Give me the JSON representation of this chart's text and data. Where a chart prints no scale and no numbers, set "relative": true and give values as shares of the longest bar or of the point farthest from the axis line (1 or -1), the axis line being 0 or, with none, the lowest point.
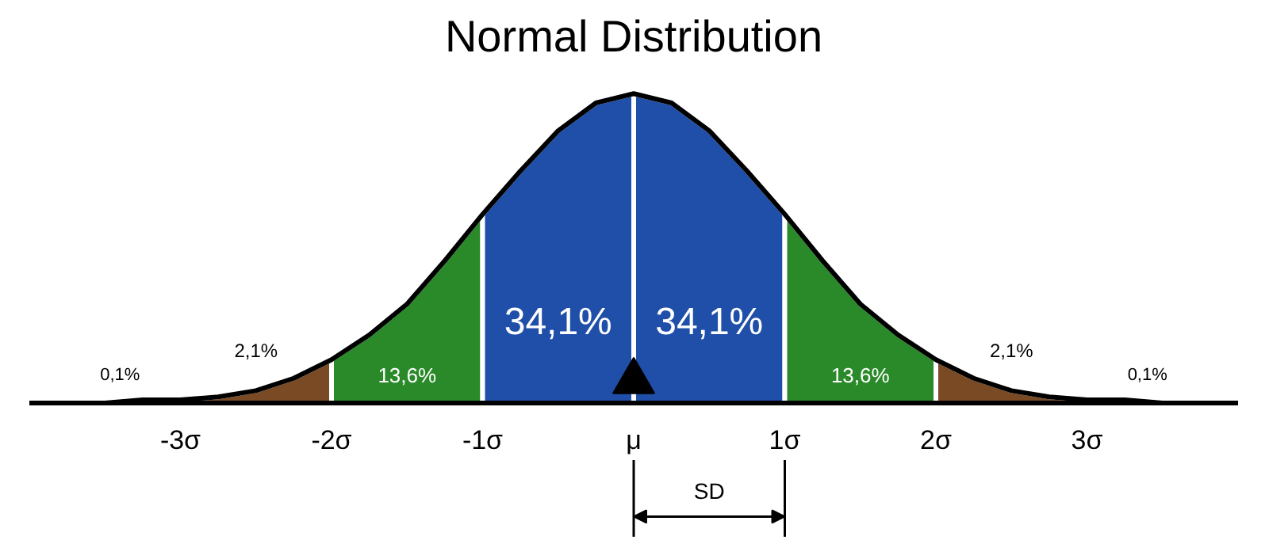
{
  "chart_data": {
    "type": "area",
    "title": "Normal Distribution",
    "relative": true,
    "grid": false,
    "tick_labels": "x",
    "xlim": [
      -4,
      4
    ],
    "xticks": [
      {
        "value": -3,
        "label": "-3σ"
      },
      {
        "value": -2,
        "label": "-2σ"
      },
      {
        "value": -1,
        "label": "-1σ"
      },
      {
        "value": 0,
        "label": "μ"
      },
      {
        "value": 1,
        "label": "1σ"
      },
      {
        "value": 2,
        "label": "2σ"
      },
      {
        "value": 3,
        "label": "3σ"
      }
    ],
    "series": [
      {
        "color": "#7a4a24",
        "x": [
          -3,
          -2.75,
          -2.5,
          -2.25,
          -2
        ],
        "values": [
          0.01,
          0.02,
          0.04,
          0.08,
          0.14
        ]
      },
      {
        "color": "#2a8a2a",
        "x": [
          -2,
          -1.75,
          -1.5,
          -1.25,
          -1
        ],
        "values": [
          0.14,
          0.22,
          0.32,
          0.46,
          0.61
        ]
      },
      {
        "color": "#1f4fa8",
        "x": [
          -1,
          -0.75,
          -0.5,
          -0.25,
          0
        ],
        "values": [
          0.61,
          0.75,
          0.88,
          0.97,
          1
        ]
      },
      {
        "color": "#1f4fa8",
        "x": [
          0,
          0.25,
          0.5,
          0.75,
          1
        ],
        "values": [
          1,
          0.97,
          0.88,
          0.75,
          0.61
        ]
      },
      {
        "color": "#2a8a2a",
        "x": [
          1,
          1.25,
          1.5,
          1.75,
          2
        ],
        "values": [
          0.61,
          0.46,
          0.32,
          0.22,
          0.14
        ]
      },
      {
        "color": "#7a4a24",
        "x": [
          2,
          2.25,
          2.5,
          2.75,
          3
        ],
        "values": [
          0.14,
          0.08,
          0.04,
          0.02,
          0.01
        ]
      },
      {
        "type": "scatter",
        "color": "#000000",
        "marker": "triangle",
        "x": [
          0
        ],
        "values": [
          0.07
        ]
      },
      {
        "type": "line",
        "color": "#000000",
        "x": [
          -4,
          -3.75,
          -3.5,
          -3.25,
          -3,
          -2.75,
          -2.5,
          -2.25,
          -2,
          -1.75,
          -1.5,
          -1.25,
          -1,
          -0.75,
          -0.5,
          -0.25,
          0,
          0.25,
          0.5,
          0.75,
          1,
          1.25,
          1.5,
          1.75,
          2,
          2.25,
          2.5,
          2.75,
          3,
          3.25,
          3.5,
          3.75,
          4
        ],
        "values": [
          0,
          0,
          0,
          0.01,
          0.01,
          0.02,
          0.04,
          0.08,
          0.14,
          0.22,
          0.32,
          0.46,
          0.61,
          0.75,
          0.88,
          0.97,
          1,
          0.97,
          0.88,
          0.75,
          0.61,
          0.46,
          0.32,
          0.22,
          0.14,
          0.08,
          0.04,
          0.02,
          0.01,
          0.01,
          0,
          0,
          0
        ]
      }
    ],
    "annotations": [
      "2,1%",
      "13,6%",
      "34,1%",
      "34,1%",
      "13,6%",
      "2,1%",
      "0,1%",
      "0,1%",
      "SD"
    ]
  }
}
